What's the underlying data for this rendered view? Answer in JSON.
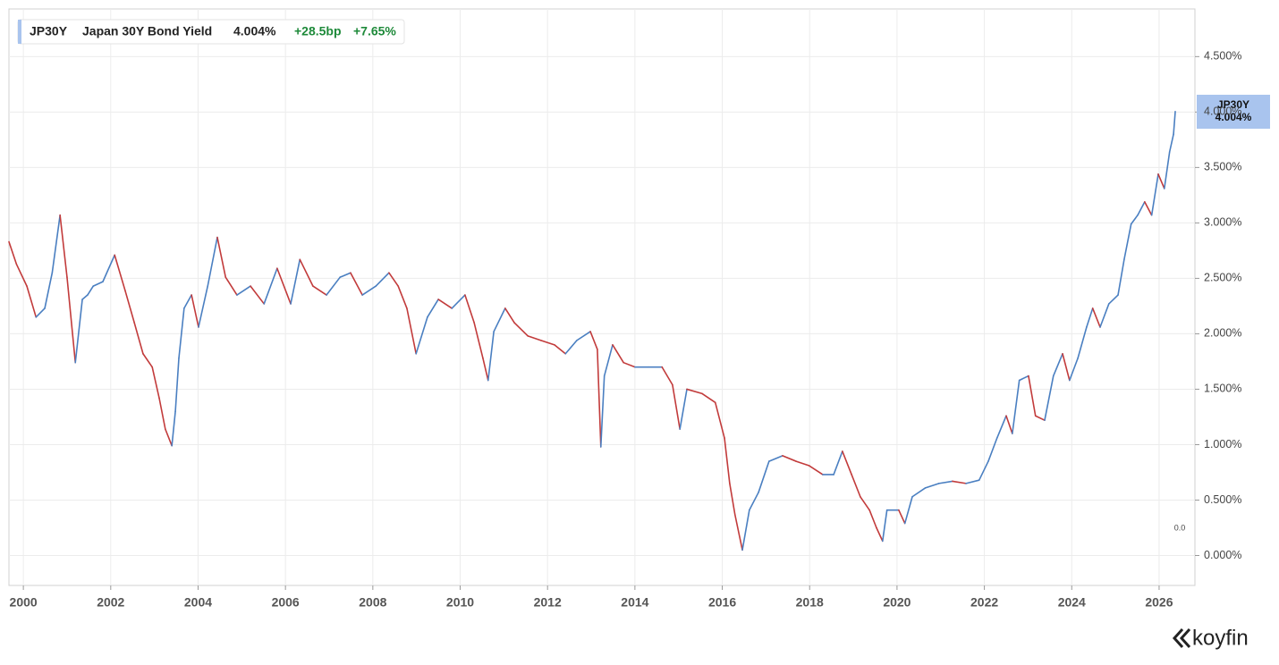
{
  "chart_data": {
    "type": "line",
    "symbol": "JP30Y",
    "last_value_label": "4.004%",
    "change_bp": "+28.5bp",
    "change_pct": "+7.65%",
    "axis_annotation": "0.0",
    "brand": "koyfin",
    "up_color": "#4a7fc1",
    "down_color": "#c23b3b",
    "grid": true,
    "xlim": [
      1999.67,
      2026.82
    ],
    "xticks": [
      2000,
      2002,
      2004,
      2006,
      2008,
      2010,
      2012,
      2014,
      2016,
      2018,
      2020,
      2022,
      2024,
      2026
    ],
    "ylim": [
      -0.27,
      4.93
    ],
    "yticks": [
      {
        "value": 0,
        "label": "0.000%"
      },
      {
        "value": 0.5,
        "label": "0.500%"
      },
      {
        "value": 1,
        "label": "1.000%"
      },
      {
        "value": 1.5,
        "label": "1.500%"
      },
      {
        "value": 2,
        "label": "2.000%"
      },
      {
        "value": 2.5,
        "label": "2.500%"
      },
      {
        "value": 3,
        "label": "3.000%"
      },
      {
        "value": 3.5,
        "label": "3.500%"
      },
      {
        "value": 4,
        "label": "4.000%"
      },
      {
        "value": 4.5,
        "label": "4.500%"
      }
    ],
    "x": [
      1999.67,
      1999.84,
      2000.08,
      2000.29,
      2000.49,
      2000.66,
      2000.84,
      2001.0,
      2001.19,
      2001.35,
      2001.47,
      2001.6,
      2001.82,
      2002.09,
      2002.33,
      2002.54,
      2002.74,
      2002.95,
      2003.11,
      2003.25,
      2003.4,
      2003.48,
      2003.56,
      2003.68,
      2003.85,
      2004.01,
      2004.22,
      2004.44,
      2004.63,
      2004.89,
      2005.2,
      2005.51,
      2005.81,
      2006.12,
      2006.33,
      2006.63,
      2006.94,
      2007.25,
      2007.49,
      2007.76,
      2008.07,
      2008.37,
      2008.58,
      2008.78,
      2008.99,
      2009.25,
      2009.5,
      2009.81,
      2010.11,
      2010.32,
      2010.52,
      2010.64,
      2010.77,
      2011.03,
      2011.24,
      2011.55,
      2011.85,
      2012.16,
      2012.41,
      2012.67,
      2012.98,
      2013.14,
      2013.22,
      2013.3,
      2013.49,
      2013.74,
      2014.0,
      2014.31,
      2014.62,
      2014.86,
      2015.03,
      2015.19,
      2015.54,
      2015.84,
      2016.05,
      2016.17,
      2016.29,
      2016.46,
      2016.62,
      2016.83,
      2017.07,
      2017.38,
      2017.69,
      2017.99,
      2018.3,
      2018.55,
      2018.75,
      2018.96,
      2019.16,
      2019.37,
      2019.53,
      2019.67,
      2019.77,
      2020.04,
      2020.18,
      2020.35,
      2020.65,
      2020.96,
      2021.27,
      2021.58,
      2021.88,
      2022.09,
      2022.29,
      2022.5,
      2022.64,
      2022.8,
      2023.01,
      2023.17,
      2023.38,
      2023.58,
      2023.79,
      2023.95,
      2024.14,
      2024.34,
      2024.48,
      2024.65,
      2024.85,
      2025.06,
      2025.2,
      2025.36,
      2025.51,
      2025.67,
      2025.83,
      2025.98,
      2026.12,
      2026.24,
      2026.33,
      2026.37
    ],
    "series": [
      {
        "name": "Japan 30Y Bond Yield",
        "values": [
          2.83,
          2.63,
          2.43,
          2.15,
          2.23,
          2.55,
          3.07,
          2.51,
          1.74,
          2.31,
          2.35,
          2.43,
          2.47,
          2.71,
          2.39,
          2.1,
          1.82,
          1.7,
          1.42,
          1.14,
          0.99,
          1.3,
          1.78,
          2.23,
          2.35,
          2.06,
          2.43,
          2.87,
          2.51,
          2.35,
          2.43,
          2.27,
          2.59,
          2.27,
          2.67,
          2.43,
          2.35,
          2.51,
          2.55,
          2.35,
          2.43,
          2.55,
          2.43,
          2.23,
          1.82,
          2.15,
          2.31,
          2.23,
          2.35,
          2.1,
          1.78,
          1.58,
          2.02,
          2.23,
          2.1,
          1.98,
          1.94,
          1.9,
          1.82,
          1.94,
          2.02,
          1.86,
          0.98,
          1.62,
          1.9,
          1.74,
          1.7,
          1.7,
          1.7,
          1.54,
          1.14,
          1.5,
          1.46,
          1.38,
          1.06,
          0.65,
          0.37,
          0.05,
          0.41,
          0.57,
          0.85,
          0.9,
          0.85,
          0.81,
          0.73,
          0.73,
          0.94,
          0.73,
          0.53,
          0.41,
          0.25,
          0.13,
          0.41,
          0.41,
          0.29,
          0.53,
          0.61,
          0.65,
          0.67,
          0.65,
          0.68,
          0.85,
          1.06,
          1.26,
          1.1,
          1.58,
          1.62,
          1.26,
          1.22,
          1.62,
          1.82,
          1.58,
          1.78,
          2.06,
          2.23,
          2.06,
          2.27,
          2.35,
          2.67,
          2.99,
          3.07,
          3.19,
          3.07,
          3.44,
          3.31,
          3.64,
          3.8,
          4.004
        ]
      }
    ]
  }
}
